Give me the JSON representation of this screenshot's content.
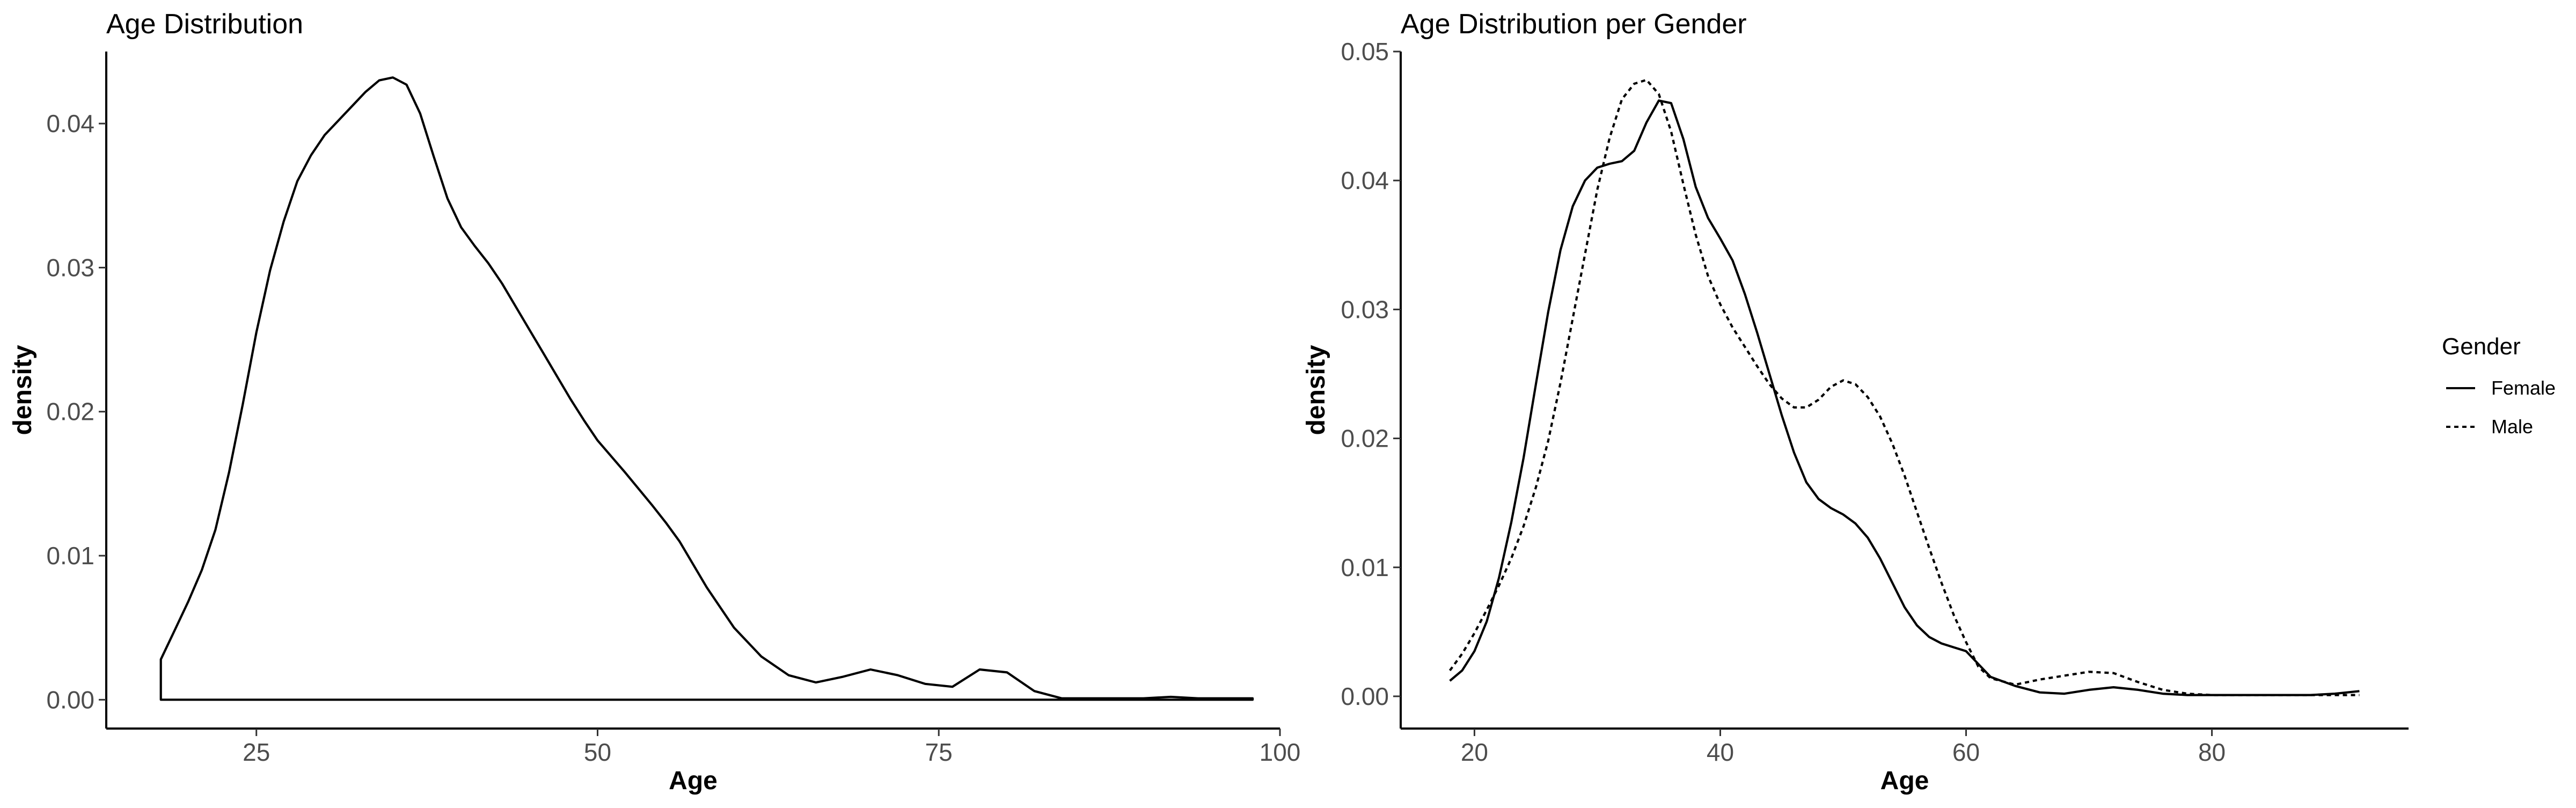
{
  "chart_data": [
    {
      "type": "line",
      "title": "Age Distribution",
      "xlabel": "Age",
      "ylabel": "density",
      "xlim": [
        14,
        100
      ],
      "ylim": [
        -0.002,
        0.045
      ],
      "xticks": [
        25,
        50,
        75,
        100
      ],
      "yticks": [
        0.0,
        0.01,
        0.02,
        0.03,
        0.04
      ],
      "ytick_labels": [
        "0.00",
        "0.01",
        "0.02",
        "0.03",
        "0.04"
      ],
      "grid": false,
      "series": [
        {
          "line_style": "solid",
          "baseline_closed": true,
          "x": [
            18,
            19,
            20,
            21,
            22,
            23,
            24,
            25,
            26,
            27,
            28,
            29,
            30,
            31,
            32,
            33,
            34,
            35,
            36,
            37,
            38,
            39,
            40,
            41,
            42,
            43,
            44,
            45,
            46,
            47,
            48,
            49,
            50,
            52,
            54,
            55,
            56,
            58,
            60,
            62,
            64,
            66,
            68,
            70,
            72,
            74,
            76,
            78,
            80,
            82,
            84,
            86,
            88,
            90,
            92,
            94,
            96,
            98
          ],
          "y": [
            0.0028,
            0.0048,
            0.0068,
            0.009,
            0.0118,
            0.0158,
            0.0205,
            0.0255,
            0.0298,
            0.0332,
            0.036,
            0.0378,
            0.0392,
            0.0402,
            0.0412,
            0.0422,
            0.043,
            0.0432,
            0.0427,
            0.0407,
            0.0377,
            0.0348,
            0.0328,
            0.0315,
            0.0303,
            0.0289,
            0.0273,
            0.0257,
            0.0241,
            0.0225,
            0.0209,
            0.0194,
            0.018,
            0.0158,
            0.0135,
            0.0123,
            0.011,
            0.0078,
            0.005,
            0.003,
            0.0017,
            0.0012,
            0.0016,
            0.0021,
            0.0017,
            0.0011,
            0.0009,
            0.0021,
            0.0019,
            0.0006,
            0.0001,
            0.0001,
            0.0001,
            0.0001,
            0.0002,
            0.0001,
            0.0001,
            0.0001
          ]
        }
      ]
    },
    {
      "type": "line",
      "title": "Age Distribution per Gender",
      "xlabel": "Age",
      "ylabel": "density",
      "xlim": [
        14,
        96
      ],
      "ylim": [
        -0.0025,
        0.05
      ],
      "xticks": [
        20,
        40,
        60,
        80
      ],
      "yticks": [
        0.0,
        0.01,
        0.02,
        0.03,
        0.04,
        0.05
      ],
      "ytick_labels": [
        "0.00",
        "0.01",
        "0.02",
        "0.03",
        "0.04",
        "0.05"
      ],
      "grid": false,
      "legend": {
        "title": "Gender",
        "position": "right"
      },
      "series": [
        {
          "name": "Female",
          "line_style": "solid",
          "x": [
            18,
            19,
            20,
            21,
            22,
            23,
            24,
            25,
            26,
            27,
            28,
            29,
            30,
            31,
            32,
            33,
            34,
            35,
            36,
            37,
            38,
            39,
            40,
            41,
            42,
            43,
            44,
            45,
            46,
            47,
            48,
            49,
            50,
            51,
            52,
            53,
            54,
            55,
            56,
            57,
            58,
            59,
            60,
            61,
            62,
            64,
            66,
            68,
            70,
            72,
            74,
            76,
            78,
            80,
            82,
            84,
            86,
            88,
            90,
            92
          ],
          "y": [
            0.0012,
            0.002,
            0.0035,
            0.0058,
            0.0092,
            0.0135,
            0.0185,
            0.0242,
            0.0298,
            0.0346,
            0.038,
            0.04,
            0.041,
            0.0413,
            0.0415,
            0.0423,
            0.0445,
            0.0462,
            0.046,
            0.0432,
            0.0395,
            0.0371,
            0.0355,
            0.0338,
            0.0312,
            0.0282,
            0.025,
            0.0218,
            0.0189,
            0.0166,
            0.0153,
            0.0146,
            0.0141,
            0.0134,
            0.0123,
            0.0107,
            0.0088,
            0.0069,
            0.0055,
            0.0046,
            0.0041,
            0.0038,
            0.0035,
            0.0025,
            0.0015,
            0.0008,
            0.0003,
            0.0002,
            0.0005,
            0.0007,
            0.0005,
            0.0002,
            0.0001,
            0.0001,
            0.0001,
            0.0001,
            0.0001,
            0.0001,
            0.0002,
            0.0004
          ]
        },
        {
          "name": "Male",
          "line_style": "dotted",
          "x": [
            18,
            19,
            20,
            21,
            22,
            23,
            24,
            25,
            26,
            27,
            28,
            29,
            30,
            31,
            32,
            33,
            34,
            35,
            36,
            37,
            38,
            39,
            40,
            41,
            42,
            43,
            44,
            45,
            46,
            47,
            48,
            49,
            50,
            51,
            52,
            53,
            54,
            55,
            56,
            57,
            58,
            59,
            60,
            61,
            62,
            64,
            66,
            68,
            70,
            72,
            74,
            76,
            78,
            80,
            82,
            84,
            86,
            88,
            90,
            92
          ],
          "y": [
            0.002,
            0.0033,
            0.0049,
            0.0067,
            0.0086,
            0.0107,
            0.0132,
            0.0162,
            0.0198,
            0.0243,
            0.0293,
            0.0343,
            0.0393,
            0.0433,
            0.0463,
            0.0475,
            0.0478,
            0.0467,
            0.0438,
            0.0397,
            0.0358,
            0.0326,
            0.0304,
            0.0286,
            0.0271,
            0.0256,
            0.0242,
            0.0231,
            0.0224,
            0.0224,
            0.023,
            0.024,
            0.0245,
            0.0242,
            0.0232,
            0.0217,
            0.0196,
            0.0171,
            0.0143,
            0.0115,
            0.0088,
            0.0063,
            0.0042,
            0.0023,
            0.0014,
            0.0009,
            0.0013,
            0.0016,
            0.0019,
            0.0018,
            0.0011,
            0.0005,
            0.0002,
            0.0001,
            0.0001,
            0.0001,
            0.0001,
            0.0001,
            0.0001,
            0.0001
          ]
        }
      ]
    }
  ]
}
